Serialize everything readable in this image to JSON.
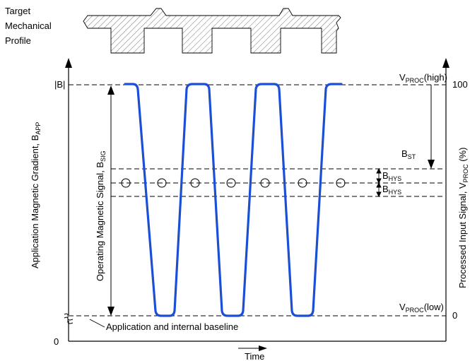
{
  "profile": {
    "line1": "Target",
    "line2": "Mechanical",
    "line3": "Profile"
  },
  "left_axis": {
    "top_label": "|B|",
    "zero_label": "0",
    "title_main": "Application Magnetic Gradient, B",
    "title_sub": "APP"
  },
  "right_axis": {
    "label_100": "100",
    "label_0": "0",
    "title_main": "Processed Input Signal, V",
    "title_sub": "PROC",
    "title_unit": " (%)"
  },
  "x_axis": {
    "label": "Time"
  },
  "annotations": {
    "vproc_high_main": "V",
    "vproc_high_sub": "PROC",
    "vproc_high_tail": "(high)",
    "vproc_low_main": "V",
    "vproc_low_sub": "PROC",
    "vproc_low_tail": "(low)",
    "bst_main": "B",
    "bst_sub": "ST",
    "bhys_main": "B",
    "bhys_sub": "HYS",
    "bsig_main": "Operating Magnetic  Signal, B",
    "bsig_sub": "SIG",
    "baseline": "Application and internal baseline"
  },
  "colors": {
    "signal": "#1a4fd6",
    "hatch": "#555555",
    "axis": "#000000"
  }
}
